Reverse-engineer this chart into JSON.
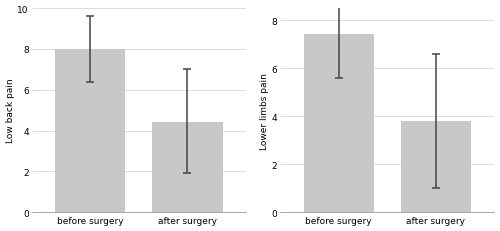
{
  "left": {
    "ylabel": "Low back pain",
    "categories": [
      "before surgery",
      "after surgery"
    ],
    "values": [
      8.0,
      4.4
    ],
    "err_low": [
      1.6,
      2.5
    ],
    "err_high": [
      1.6,
      2.6
    ],
    "ylim": [
      0,
      10
    ],
    "yticks": [
      0,
      2,
      4,
      6,
      8,
      10
    ]
  },
  "right": {
    "ylabel": "Lower limbs pain",
    "categories": [
      "before surgery",
      "after surgery"
    ],
    "values": [
      7.4,
      3.8
    ],
    "err_low": [
      1.8,
      2.8
    ],
    "err_high": [
      1.8,
      2.8
    ],
    "ylim": [
      0,
      8.5
    ],
    "yticks": [
      0,
      2,
      4,
      6,
      8
    ]
  },
  "bar_color": "#c8c8c8",
  "bar_edgecolor": "none",
  "error_color": "#444444",
  "bg_color": "#ffffff",
  "fontsize_ylabel": 6.5,
  "fontsize_tick": 6.5,
  "capsize": 3,
  "bar_width": 0.72,
  "error_lw": 1.1,
  "cap_lw": 1.1
}
